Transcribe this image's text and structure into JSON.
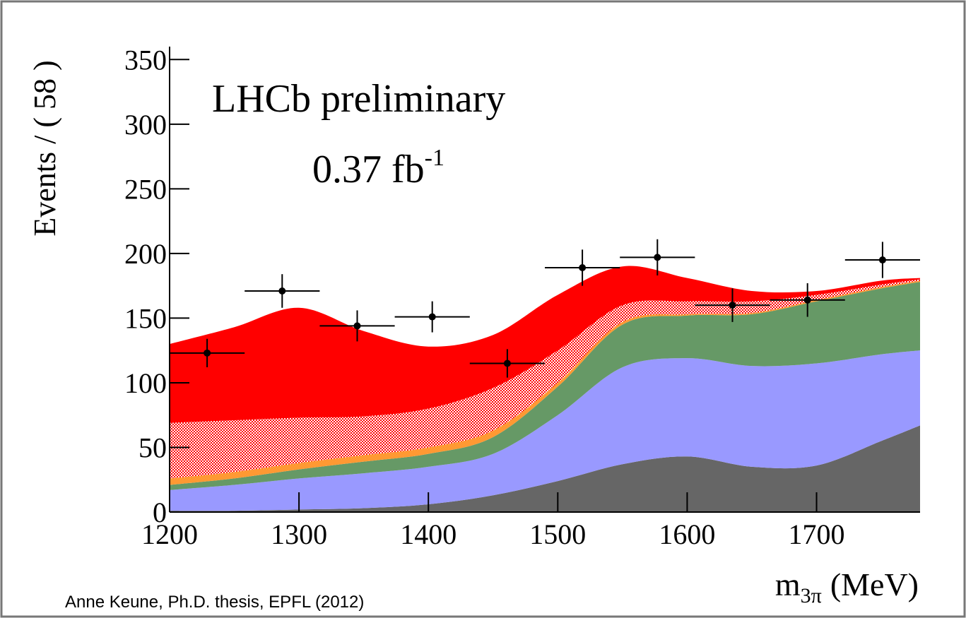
{
  "chart_data": {
    "type": "stacked_area",
    "y_label": "Events / ( 58 )",
    "x_label": {
      "main": "m",
      "sub": "3π",
      "unit": "(MeV)"
    },
    "annotations": {
      "experiment": "LHCb preliminary",
      "lumi": "0.37 fb",
      "lumi_sup": "-1"
    },
    "credit": "Anne Keune, Ph.D. thesis, EPFL (2012)",
    "xlim": [
      1200,
      1780
    ],
    "ylim": [
      0,
      360
    ],
    "xticks": [
      1200,
      1300,
      1400,
      1500,
      1600,
      1700
    ],
    "yticks": [
      0,
      50,
      100,
      150,
      200,
      250,
      300,
      350
    ],
    "x": [
      1200,
      1250,
      1300,
      1350,
      1400,
      1450,
      1500,
      1550,
      1600,
      1650,
      1700,
      1750,
      1780
    ],
    "series": [
      {
        "color": "#666666",
        "values": [
          1,
          1,
          2,
          3,
          6,
          13,
          24,
          37,
          43,
          35,
          36,
          55,
          67
        ]
      },
      {
        "color": "#9999ff",
        "values": [
          16,
          20,
          24,
          27,
          29,
          32,
          51,
          75,
          76,
          78,
          79,
          67,
          58
        ]
      },
      {
        "color": "#669966",
        "values": [
          4,
          5,
          7,
          9,
          10,
          13,
          22,
          33,
          33,
          40,
          48,
          51,
          53
        ]
      },
      {
        "color": "#ff9933",
        "values": [
          5,
          5,
          5,
          5,
          5,
          5,
          3,
          2,
          1,
          1,
          1,
          1,
          1
        ]
      },
      {
        "color": "#ff0000",
        "hatch": true,
        "values": [
          43,
          40,
          35,
          30,
          30,
          33,
          25,
          13,
          10,
          9,
          4,
          2,
          1
        ]
      },
      {
        "color": "#ff0000",
        "values": [
          61,
          72,
          85,
          66,
          48,
          41,
          43,
          30,
          18,
          8,
          3,
          3,
          1
        ]
      }
    ],
    "points": {
      "color": "#000000",
      "x": [
        1229,
        1287,
        1345,
        1403,
        1461,
        1519,
        1577,
        1635,
        1693,
        1751
      ],
      "values": [
        123,
        171,
        144,
        151,
        115,
        189,
        197,
        160,
        164,
        195
      ],
      "errors": [
        11,
        13,
        12,
        12,
        11,
        14,
        14,
        13,
        13,
        14
      ],
      "xerr": 29
    }
  }
}
